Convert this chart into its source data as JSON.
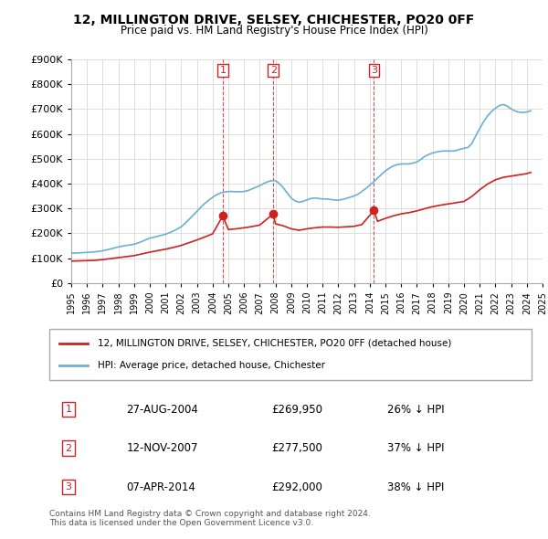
{
  "title": "12, MILLINGTON DRIVE, SELSEY, CHICHESTER, PO20 0FF",
  "subtitle": "Price paid vs. HM Land Registry's House Price Index (HPI)",
  "xlabel": "",
  "ylabel": "",
  "ylim": [
    0,
    900000
  ],
  "yticks": [
    0,
    100000,
    200000,
    300000,
    400000,
    500000,
    600000,
    700000,
    800000,
    900000
  ],
  "ytick_labels": [
    "£0",
    "£100K",
    "£200K",
    "£300K",
    "£400K",
    "£500K",
    "£600K",
    "£700K",
    "£800K",
    "£900K"
  ],
  "x_start_year": 1995,
  "x_end_year": 2025,
  "hpi_color": "#6ab0d4",
  "price_color": "#cc2222",
  "vline_color": "#cc2222",
  "background_color": "#ffffff",
  "grid_color": "#dddddd",
  "sale_dates": [
    "2004-08-27",
    "2007-11-12",
    "2014-04-07"
  ],
  "sale_prices": [
    269950,
    277500,
    292000
  ],
  "sale_labels": [
    "1",
    "2",
    "3"
  ],
  "legend_label_price": "12, MILLINGTON DRIVE, SELSEY, CHICHESTER, PO20 0FF (detached house)",
  "legend_label_hpi": "HPI: Average price, detached house, Chichester",
  "table_rows": [
    {
      "label": "1",
      "date": "27-AUG-2004",
      "price": "£269,950",
      "pct": "26% ↓ HPI"
    },
    {
      "label": "2",
      "date": "12-NOV-2007",
      "price": "£277,500",
      "pct": "37% ↓ HPI"
    },
    {
      "label": "3",
      "date": "07-APR-2014",
      "price": "£292,000",
      "pct": "38% ↓ HPI"
    }
  ],
  "footnote": "Contains HM Land Registry data © Crown copyright and database right 2024.\nThis data is licensed under the Open Government Licence v3.0.",
  "hpi_data_x": [
    1995.0,
    1995.25,
    1995.5,
    1995.75,
    1996.0,
    1996.25,
    1996.5,
    1996.75,
    1997.0,
    1997.25,
    1997.5,
    1997.75,
    1998.0,
    1998.25,
    1998.5,
    1998.75,
    1999.0,
    1999.25,
    1999.5,
    1999.75,
    2000.0,
    2000.25,
    2000.5,
    2000.75,
    2001.0,
    2001.25,
    2001.5,
    2001.75,
    2002.0,
    2002.25,
    2002.5,
    2002.75,
    2003.0,
    2003.25,
    2003.5,
    2003.75,
    2004.0,
    2004.25,
    2004.5,
    2004.75,
    2005.0,
    2005.25,
    2005.5,
    2005.75,
    2006.0,
    2006.25,
    2006.5,
    2006.75,
    2007.0,
    2007.25,
    2007.5,
    2007.75,
    2008.0,
    2008.25,
    2008.5,
    2008.75,
    2009.0,
    2009.25,
    2009.5,
    2009.75,
    2010.0,
    2010.25,
    2010.5,
    2010.75,
    2011.0,
    2011.25,
    2011.5,
    2011.75,
    2012.0,
    2012.25,
    2012.5,
    2012.75,
    2013.0,
    2013.25,
    2013.5,
    2013.75,
    2014.0,
    2014.25,
    2014.5,
    2014.75,
    2015.0,
    2015.25,
    2015.5,
    2015.75,
    2016.0,
    2016.25,
    2016.5,
    2016.75,
    2017.0,
    2017.25,
    2017.5,
    2017.75,
    2018.0,
    2018.25,
    2018.5,
    2018.75,
    2019.0,
    2019.25,
    2019.5,
    2019.75,
    2020.0,
    2020.25,
    2020.5,
    2020.75,
    2021.0,
    2021.25,
    2021.5,
    2021.75,
    2022.0,
    2022.25,
    2022.5,
    2022.75,
    2023.0,
    2023.25,
    2023.5,
    2023.75,
    2024.0,
    2024.25
  ],
  "hpi_data_y": [
    120000,
    120500,
    121000,
    122000,
    123000,
    124000,
    125500,
    127000,
    130000,
    133000,
    137000,
    141000,
    145000,
    148000,
    151000,
    153000,
    156000,
    161000,
    167000,
    174000,
    180000,
    184000,
    188000,
    192000,
    196000,
    202000,
    209000,
    217000,
    226000,
    240000,
    256000,
    272000,
    288000,
    305000,
    320000,
    333000,
    345000,
    355000,
    362000,
    366000,
    368000,
    368000,
    367000,
    367000,
    368000,
    372000,
    378000,
    385000,
    392000,
    400000,
    407000,
    412000,
    412000,
    400000,
    383000,
    362000,
    342000,
    330000,
    325000,
    328000,
    334000,
    340000,
    342000,
    340000,
    338000,
    338000,
    336000,
    334000,
    333000,
    336000,
    340000,
    345000,
    350000,
    357000,
    368000,
    380000,
    393000,
    407000,
    422000,
    437000,
    451000,
    462000,
    471000,
    476000,
    479000,
    479000,
    479000,
    482000,
    487000,
    497000,
    509000,
    517000,
    523000,
    527000,
    530000,
    531000,
    531000,
    531000,
    533000,
    538000,
    542000,
    545000,
    561000,
    592000,
    621000,
    649000,
    672000,
    690000,
    703000,
    714000,
    718000,
    712000,
    700000,
    692000,
    687000,
    686000,
    688000,
    693000
  ],
  "price_data_x": [
    1995.0,
    1995.5,
    1996.0,
    1996.5,
    1997.0,
    1997.5,
    1998.0,
    1998.5,
    1999.0,
    1999.5,
    2000.0,
    2000.5,
    2001.0,
    2001.5,
    2002.0,
    2002.5,
    2003.0,
    2003.5,
    2004.0,
    2004.65,
    2005.0,
    2005.5,
    2006.0,
    2006.5,
    2007.0,
    2007.85,
    2008.0,
    2008.5,
    2009.0,
    2009.5,
    2010.0,
    2010.5,
    2011.0,
    2011.5,
    2012.0,
    2012.5,
    2013.0,
    2013.5,
    2014.27,
    2014.5,
    2015.0,
    2015.5,
    2016.0,
    2016.5,
    2017.0,
    2017.5,
    2018.0,
    2018.5,
    2019.0,
    2019.5,
    2020.0,
    2020.5,
    2021.0,
    2021.5,
    2022.0,
    2022.5,
    2023.0,
    2023.5,
    2024.0,
    2024.25
  ],
  "price_data_y": [
    88000,
    89000,
    90000,
    91000,
    94000,
    98000,
    102000,
    106000,
    110000,
    117000,
    124000,
    130000,
    136000,
    143000,
    151000,
    162000,
    173000,
    185000,
    198000,
    269950,
    215000,
    218000,
    222000,
    227000,
    233000,
    277500,
    238000,
    230000,
    218000,
    212000,
    218000,
    222000,
    225000,
    225000,
    224000,
    226000,
    228000,
    235000,
    292000,
    248000,
    260000,
    270000,
    278000,
    283000,
    290000,
    299000,
    307000,
    313000,
    318000,
    323000,
    328000,
    348000,
    375000,
    398000,
    415000,
    425000,
    430000,
    435000,
    440000,
    445000
  ]
}
